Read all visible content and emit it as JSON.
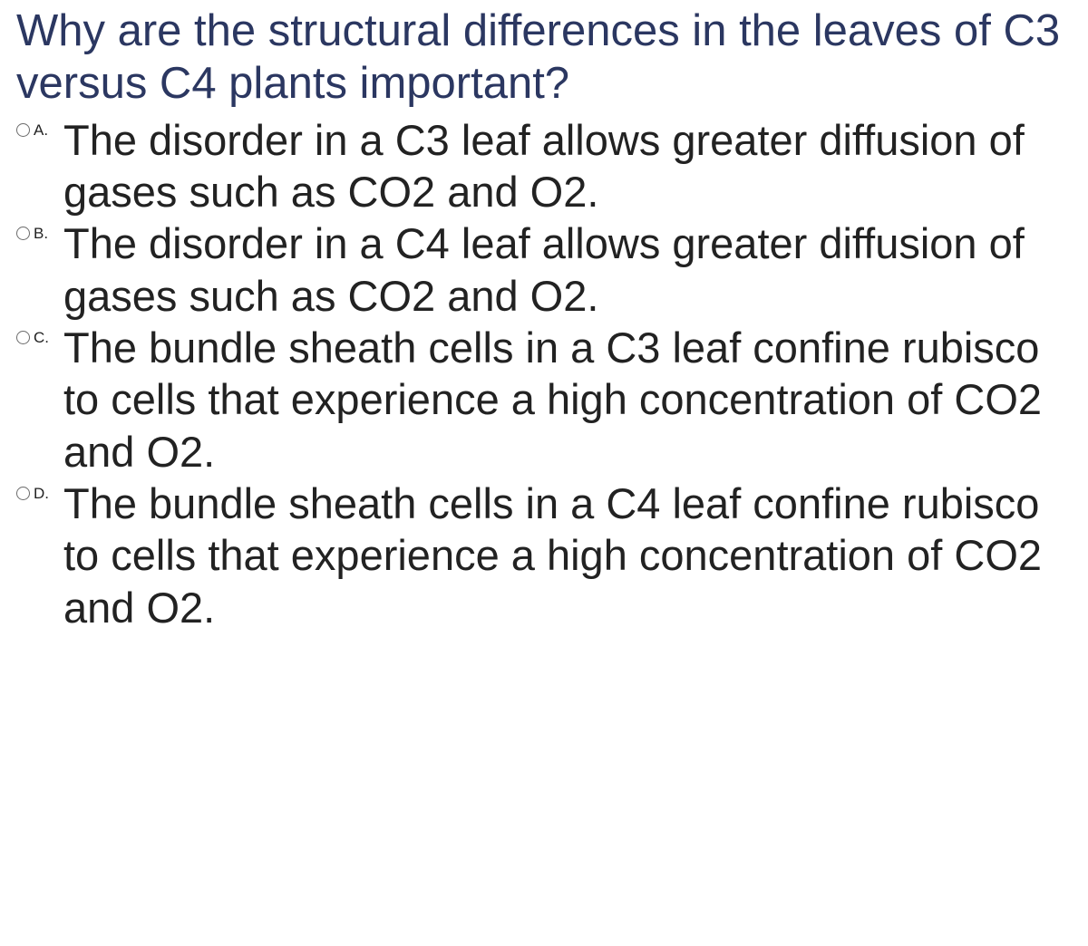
{
  "question": {
    "text": "Why are the structural differences in the leaves of C3 versus C4 plants important?",
    "color": "#2b3761",
    "fontsize": 49
  },
  "answer_style": {
    "color": "#222222",
    "fontsize": 47
  },
  "options": [
    {
      "letter": "A.",
      "text": "The disorder in a C3 leaf allows greater diffusion of gases such as CO2 and O2."
    },
    {
      "letter": "B.",
      "text": "The disorder in a C4 leaf allows greater diffusion of gases such as CO2 and O2."
    },
    {
      "letter": "C.",
      "text": "The bundle sheath cells in a C3 leaf confine rubisco to cells that experience a high concentration of CO2 and O2."
    },
    {
      "letter": "D.",
      "text": "The bundle sheath cells in a C4 leaf confine rubisco to cells that experience a high concentration of CO2 and O2."
    }
  ]
}
